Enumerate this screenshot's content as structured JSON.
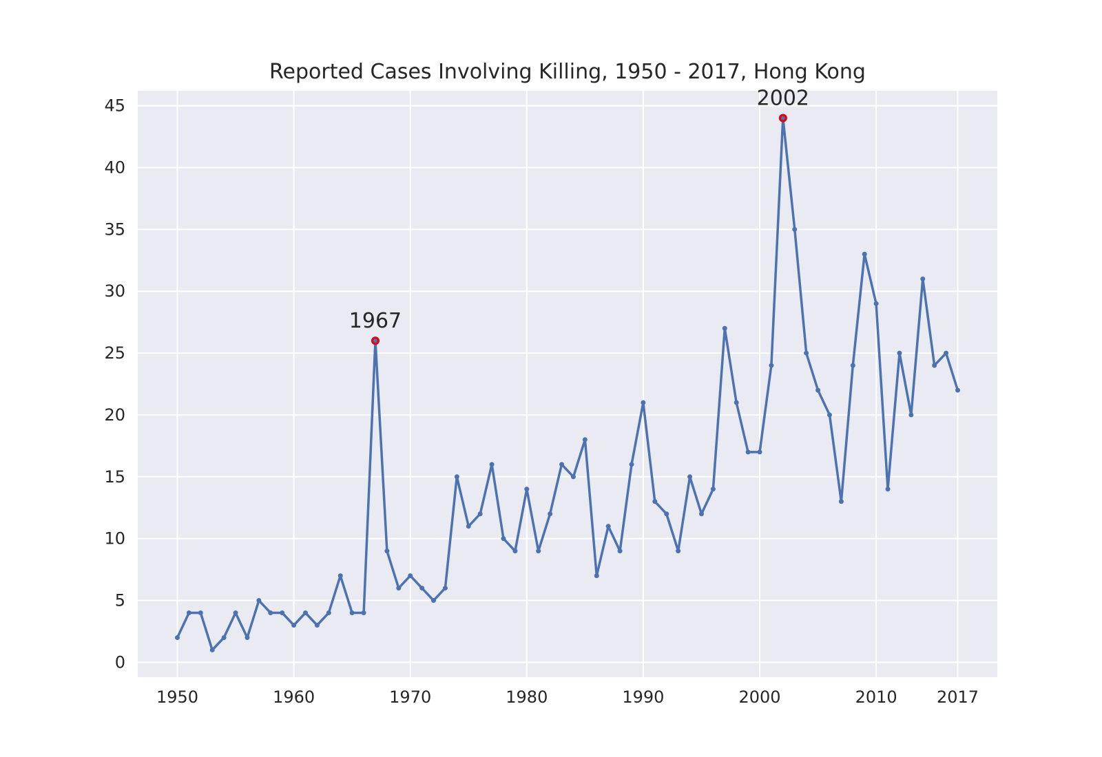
{
  "chart_data": {
    "type": "line",
    "title": "Reported Cases Involving Killing, 1950 - 2017, Hong Kong",
    "xlabel": "",
    "ylabel": "",
    "xlim": [
      1946.6,
      2020.4
    ],
    "ylim": [
      -1.2,
      46.2
    ],
    "grid": true,
    "x_ticks": [
      "1950",
      "1960",
      "1970",
      "1980",
      "1990",
      "2000",
      "2010",
      "2017"
    ],
    "y_ticks": [
      "0",
      "5",
      "10",
      "15",
      "20",
      "25",
      "30",
      "35",
      "40",
      "45"
    ],
    "series": [
      {
        "x": [
          1950,
          1951,
          1952,
          1953,
          1954,
          1955,
          1956,
          1957,
          1958,
          1959,
          1960,
          1961,
          1962,
          1963,
          1964,
          1965,
          1966,
          1967,
          1968,
          1969,
          1970,
          1971,
          1972,
          1973,
          1974,
          1975,
          1976,
          1977,
          1978,
          1979,
          1980,
          1981,
          1982,
          1983,
          1984,
          1985,
          1986,
          1987,
          1988,
          1989,
          1990,
          1991,
          1992,
          1993,
          1994,
          1995,
          1996,
          1997,
          1998,
          1999,
          2000,
          2001,
          2002,
          2003,
          2004,
          2005,
          2006,
          2007,
          2008,
          2009,
          2010,
          2011,
          2012,
          2013,
          2014,
          2015,
          2016,
          2017
        ],
        "values": [
          2,
          4,
          4,
          1,
          2,
          4,
          2,
          5,
          4,
          4,
          3,
          4,
          3,
          4,
          7,
          4,
          4,
          26,
          9,
          6,
          7,
          6,
          5,
          6,
          15,
          11,
          12,
          16,
          10,
          9,
          14,
          9,
          12,
          16,
          15,
          18,
          7,
          11,
          9,
          16,
          21,
          13,
          12,
          9,
          15,
          12,
          14,
          27,
          21,
          17,
          17,
          24,
          44,
          35,
          25,
          22,
          20,
          13,
          24,
          33,
          29,
          14,
          25,
          20,
          31,
          24,
          25,
          22
        ]
      }
    ],
    "highlights": [
      {
        "x": 1967,
        "y": 26,
        "label": "1967"
      },
      {
        "x": 2002,
        "y": 44,
        "label": "2002"
      }
    ],
    "colors": {
      "line": "#4c72b0",
      "highlight": "#e8000b",
      "plot_bg": "#eaeaf2",
      "grid": "#ffffff"
    }
  }
}
